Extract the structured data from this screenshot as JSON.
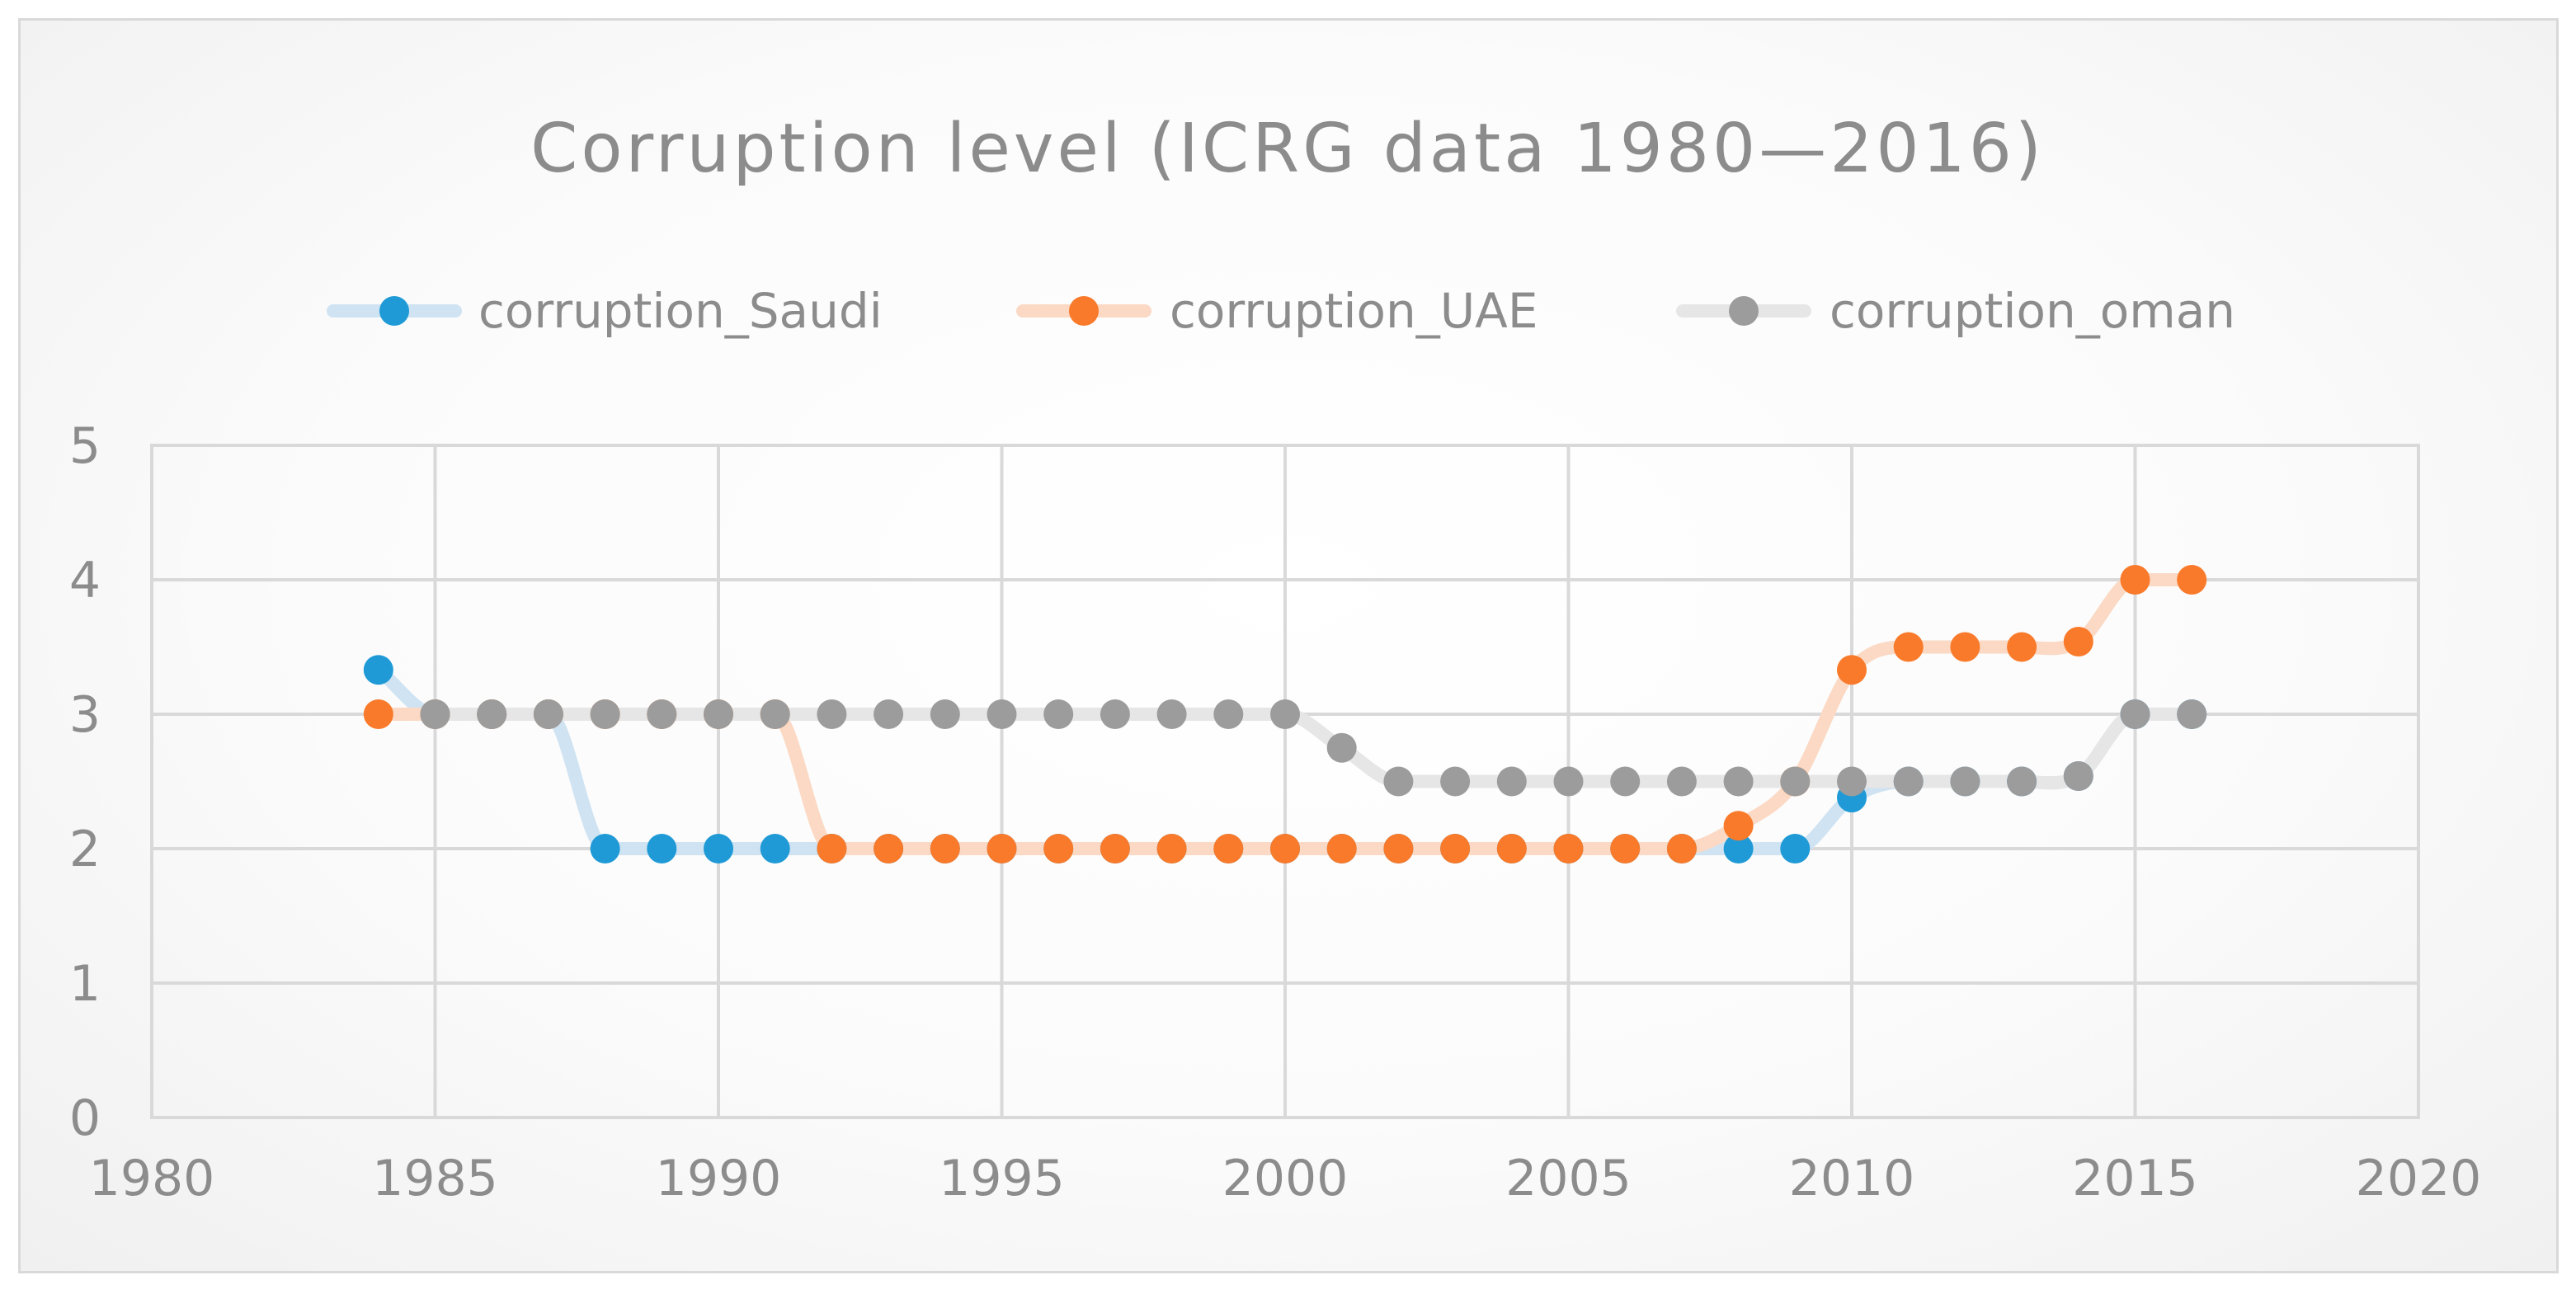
{
  "chart_data": {
    "type": "scatter",
    "title": "Corruption level (ICRG data 1980—2016)",
    "xlabel": "",
    "ylabel": "",
    "xlim": [
      1980,
      2020
    ],
    "ylim": [
      0,
      5
    ],
    "x_ticks": [
      "1980",
      "1985",
      "1990",
      "1995",
      "2000",
      "2005",
      "2010",
      "2015",
      "2020"
    ],
    "y_ticks": [
      "0",
      "1",
      "2",
      "3",
      "4",
      "5"
    ],
    "grid": true,
    "legend_position": "top",
    "lines": "smoothed, translucent",
    "series": [
      {
        "name": "corruption_Saudi",
        "color": "#1f9ad6",
        "line_color": "#cfe3f2",
        "x": [
          1984,
          1985,
          1986,
          1987,
          1988,
          1989,
          1990,
          1991,
          1992,
          1993,
          1994,
          1995,
          1996,
          1997,
          1998,
          1999,
          2000,
          2001,
          2002,
          2003,
          2004,
          2005,
          2006,
          2007,
          2008,
          2009,
          2010,
          2011,
          2012,
          2013,
          2014,
          2015,
          2016
        ],
        "y": [
          3.33,
          3,
          3,
          3,
          2,
          2,
          2,
          2,
          2,
          2,
          2,
          2,
          2,
          2,
          2,
          2,
          2,
          2,
          2,
          2,
          2,
          2,
          2,
          2,
          2,
          2,
          2.38,
          2.5,
          2.5,
          2.5,
          2.54,
          3,
          3
        ]
      },
      {
        "name": "corruption_UAE",
        "color": "#f97a2a",
        "line_color": "#fbd9c4",
        "x": [
          1984,
          1985,
          1986,
          1987,
          1988,
          1989,
          1990,
          1991,
          1992,
          1993,
          1994,
          1995,
          1996,
          1997,
          1998,
          1999,
          2000,
          2001,
          2002,
          2003,
          2004,
          2005,
          2006,
          2007,
          2008,
          2009,
          2010,
          2011,
          2012,
          2013,
          2014,
          2015,
          2016
        ],
        "y": [
          3,
          3,
          3,
          3,
          3,
          3,
          3,
          3,
          2,
          2,
          2,
          2,
          2,
          2,
          2,
          2,
          2,
          2,
          2,
          2,
          2,
          2,
          2,
          2,
          2.17,
          2.5,
          3.33,
          3.5,
          3.5,
          3.5,
          3.54,
          4,
          4
        ]
      },
      {
        "name": "corruption_oman",
        "color": "#9c9c9c",
        "line_color": "#e6e6e6",
        "x": [
          1985,
          1986,
          1987,
          1988,
          1989,
          1990,
          1991,
          1992,
          1993,
          1994,
          1995,
          1996,
          1997,
          1998,
          1999,
          2000,
          2001,
          2002,
          2003,
          2004,
          2005,
          2006,
          2007,
          2008,
          2009,
          2010,
          2011,
          2012,
          2013,
          2014,
          2015,
          2016
        ],
        "y": [
          3,
          3,
          3,
          3,
          3,
          3,
          3,
          3,
          3,
          3,
          3,
          3,
          3,
          3,
          3,
          3,
          2.75,
          2.5,
          2.5,
          2.5,
          2.5,
          2.5,
          2.5,
          2.5,
          2.5,
          2.5,
          2.5,
          2.5,
          2.5,
          2.54,
          3,
          3
        ]
      }
    ]
  }
}
